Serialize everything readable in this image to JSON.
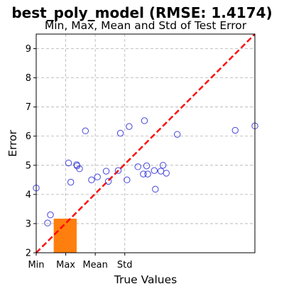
{
  "chart_data": {
    "type": "scatter",
    "title": "best_poly_model (RMSE: 1.4174)",
    "subtitle": "Min, Max, Mean and Std of Test Error",
    "xlabel": "True Values",
    "ylabel": "Error",
    "xlim": [
      0,
      10
    ],
    "ylim": [
      2,
      9.5
    ],
    "x_tick_values": [
      0,
      1.35,
      2.7,
      4.05
    ],
    "x_tick_labels": [
      "Min",
      "Max",
      "Mean",
      "Std"
    ],
    "y_ticks": [
      2,
      3,
      4,
      5,
      6,
      7,
      8,
      9
    ],
    "grid": true,
    "colors": {
      "points": "#4444dd",
      "line": "#ff0000",
      "bar": "#ff7f0e"
    },
    "bar": {
      "x0": 0.8,
      "x1": 1.85,
      "y": 3.17
    },
    "reference_line": {
      "x": [
        0,
        10
      ],
      "y": [
        2,
        9.5
      ]
    },
    "points": [
      {
        "x": 0.0,
        "y": 4.22
      },
      {
        "x": 0.52,
        "y": 3.02
      },
      {
        "x": 0.65,
        "y": 3.3
      },
      {
        "x": 1.48,
        "y": 5.08
      },
      {
        "x": 1.58,
        "y": 4.42
      },
      {
        "x": 1.85,
        "y": 5.02
      },
      {
        "x": 1.87,
        "y": 4.98
      },
      {
        "x": 1.98,
        "y": 4.88
      },
      {
        "x": 2.25,
        "y": 6.18
      },
      {
        "x": 2.53,
        "y": 4.5
      },
      {
        "x": 2.8,
        "y": 4.6
      },
      {
        "x": 3.2,
        "y": 4.8
      },
      {
        "x": 3.3,
        "y": 4.45
      },
      {
        "x": 3.75,
        "y": 4.82
      },
      {
        "x": 3.85,
        "y": 6.1
      },
      {
        "x": 4.15,
        "y": 4.5
      },
      {
        "x": 4.25,
        "y": 6.33
      },
      {
        "x": 4.65,
        "y": 4.95
      },
      {
        "x": 4.9,
        "y": 4.7
      },
      {
        "x": 4.95,
        "y": 6.53
      },
      {
        "x": 5.05,
        "y": 4.98
      },
      {
        "x": 5.1,
        "y": 4.7
      },
      {
        "x": 5.4,
        "y": 4.82
      },
      {
        "x": 5.45,
        "y": 4.18
      },
      {
        "x": 5.7,
        "y": 4.8
      },
      {
        "x": 5.8,
        "y": 5.0
      },
      {
        "x": 5.95,
        "y": 4.73
      },
      {
        "x": 6.45,
        "y": 6.06
      },
      {
        "x": 9.1,
        "y": 6.2
      },
      {
        "x": 10.0,
        "y": 6.35
      }
    ]
  }
}
